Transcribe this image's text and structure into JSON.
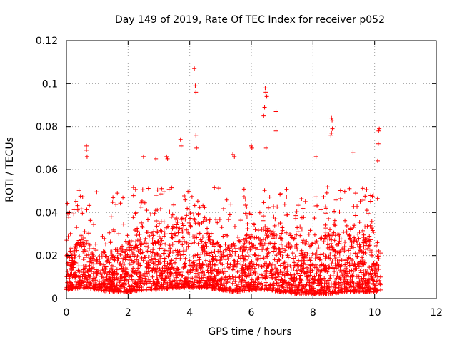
{
  "chart_data": {
    "type": "scatter",
    "title": "Day 149 of 2019, Rate Of TEC Index for receiver p052",
    "xlabel": "GPS time / hours",
    "ylabel": "ROTI / TECUs",
    "xlim": [
      0,
      12
    ],
    "ylim": [
      0,
      0.12
    ],
    "xticks": [
      0,
      2,
      4,
      6,
      8,
      10,
      12
    ],
    "xtick_labels": [
      "0",
      "2",
      "4",
      "6",
      "8",
      "10",
      "12"
    ],
    "yticks": [
      0,
      0.02,
      0.04,
      0.06,
      0.08,
      0.1,
      0.12
    ],
    "ytick_labels": [
      "0",
      "0.02",
      "0.04",
      "0.06",
      "0.08",
      "0.1",
      "0.12"
    ],
    "grid": true,
    "marker": "+",
    "color": "#ff0000",
    "data_x_range": [
      0,
      10.2
    ],
    "notable_points": [
      {
        "x": 0.65,
        "y": 0.071
      },
      {
        "x": 0.65,
        "y": 0.069
      },
      {
        "x": 0.67,
        "y": 0.066
      },
      {
        "x": 1.65,
        "y": 0.049
      },
      {
        "x": 2.5,
        "y": 0.066
      },
      {
        "x": 2.9,
        "y": 0.065
      },
      {
        "x": 3.25,
        "y": 0.066
      },
      {
        "x": 3.28,
        "y": 0.065
      },
      {
        "x": 3.7,
        "y": 0.074
      },
      {
        "x": 3.72,
        "y": 0.071
      },
      {
        "x": 4.15,
        "y": 0.107
      },
      {
        "x": 4.18,
        "y": 0.099
      },
      {
        "x": 4.2,
        "y": 0.096
      },
      {
        "x": 4.2,
        "y": 0.076
      },
      {
        "x": 4.22,
        "y": 0.07
      },
      {
        "x": 5.4,
        "y": 0.067
      },
      {
        "x": 5.45,
        "y": 0.066
      },
      {
        "x": 6.0,
        "y": 0.071
      },
      {
        "x": 6.02,
        "y": 0.07
      },
      {
        "x": 6.45,
        "y": 0.098
      },
      {
        "x": 6.47,
        "y": 0.096
      },
      {
        "x": 6.5,
        "y": 0.094
      },
      {
        "x": 6.43,
        "y": 0.089
      },
      {
        "x": 6.4,
        "y": 0.085
      },
      {
        "x": 6.48,
        "y": 0.07
      },
      {
        "x": 6.8,
        "y": 0.087
      },
      {
        "x": 6.8,
        "y": 0.078
      },
      {
        "x": 8.1,
        "y": 0.066
      },
      {
        "x": 8.6,
        "y": 0.084
      },
      {
        "x": 8.62,
        "y": 0.083
      },
      {
        "x": 8.63,
        "y": 0.079
      },
      {
        "x": 8.6,
        "y": 0.077
      },
      {
        "x": 8.58,
        "y": 0.076
      },
      {
        "x": 9.3,
        "y": 0.068
      },
      {
        "x": 10.15,
        "y": 0.079
      },
      {
        "x": 10.13,
        "y": 0.078
      },
      {
        "x": 10.12,
        "y": 0.072
      },
      {
        "x": 10.1,
        "y": 0.064
      }
    ],
    "band_profile": [
      {
        "x": 0.0,
        "low": 0.004,
        "high": 0.02
      },
      {
        "x": 0.5,
        "low": 0.005,
        "high": 0.03
      },
      {
        "x": 1.0,
        "low": 0.004,
        "high": 0.022
      },
      {
        "x": 1.5,
        "low": 0.003,
        "high": 0.022
      },
      {
        "x": 2.0,
        "low": 0.003,
        "high": 0.026
      },
      {
        "x": 2.5,
        "low": 0.004,
        "high": 0.03
      },
      {
        "x": 3.0,
        "low": 0.004,
        "high": 0.033
      },
      {
        "x": 3.5,
        "low": 0.005,
        "high": 0.035
      },
      {
        "x": 4.0,
        "low": 0.005,
        "high": 0.04
      },
      {
        "x": 4.5,
        "low": 0.005,
        "high": 0.032
      },
      {
        "x": 5.0,
        "low": 0.004,
        "high": 0.025
      },
      {
        "x": 5.5,
        "low": 0.003,
        "high": 0.025
      },
      {
        "x": 6.0,
        "low": 0.004,
        "high": 0.03
      },
      {
        "x": 6.5,
        "low": 0.004,
        "high": 0.035
      },
      {
        "x": 7.0,
        "low": 0.003,
        "high": 0.032
      },
      {
        "x": 7.5,
        "low": 0.002,
        "high": 0.028
      },
      {
        "x": 8.0,
        "low": 0.002,
        "high": 0.028
      },
      {
        "x": 8.5,
        "low": 0.002,
        "high": 0.03
      },
      {
        "x": 9.0,
        "low": 0.003,
        "high": 0.032
      },
      {
        "x": 9.5,
        "low": 0.003,
        "high": 0.028
      },
      {
        "x": 10.0,
        "low": 0.003,
        "high": 0.028
      },
      {
        "x": 10.2,
        "low": 0.004,
        "high": 0.025
      }
    ]
  }
}
